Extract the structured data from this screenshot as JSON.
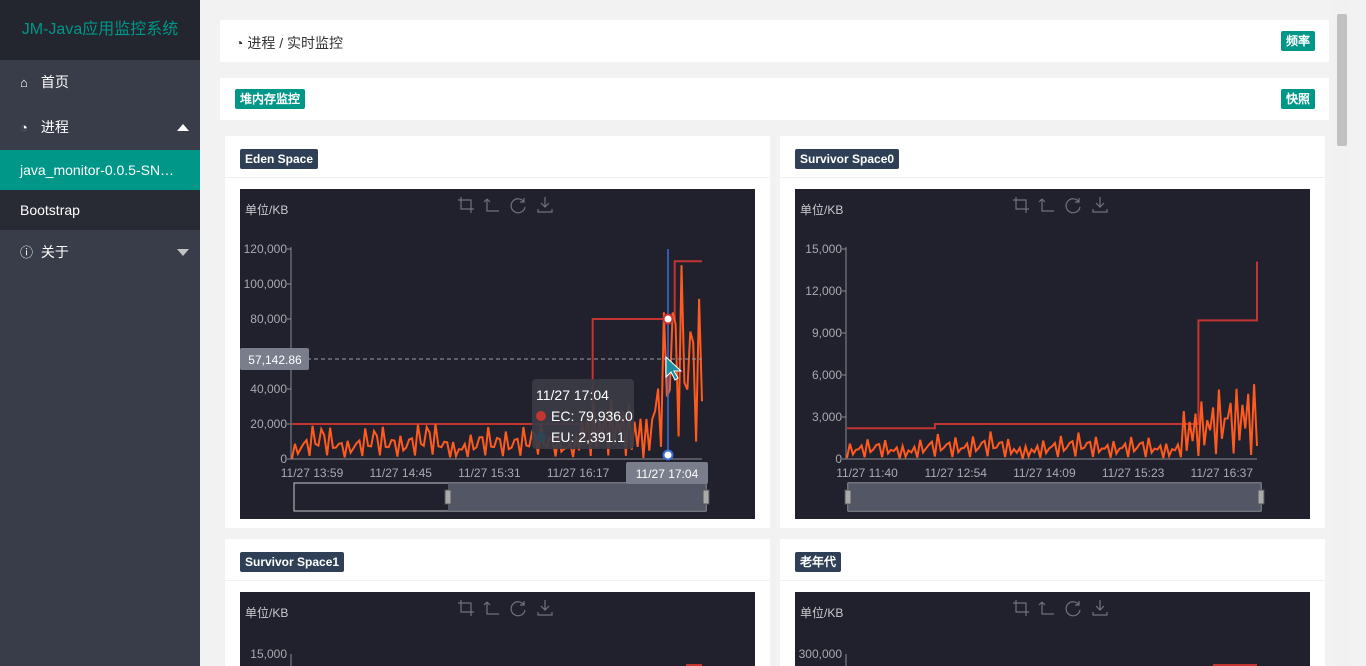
{
  "app": {
    "title": "JM-Java应用监控系统"
  },
  "sidebar": {
    "home": "首页",
    "process": "进程",
    "process_items": [
      "java_monitor-0.0.5-SN…",
      "Bootstrap"
    ],
    "about": "关于"
  },
  "breadcrumb": {
    "text": "进程 / 实时监控",
    "right_badge": "频率"
  },
  "section": {
    "title": "堆内存监控",
    "right_badge": "快照"
  },
  "colors": {
    "accent": "#009688",
    "sidebar": "#393d49",
    "chart_bg": "#21202d",
    "capacity_line": "#c23531",
    "used_line": "#ff5b1f"
  },
  "toolbox_icons": [
    "zoom-icon",
    "zoom-reset-icon",
    "restore-icon",
    "save-image-icon"
  ],
  "chart_unit": "单位/KB",
  "cards": [
    {
      "title": "Eden Space"
    },
    {
      "title": "Survivor Space0"
    },
    {
      "title": "Survivor Space1"
    },
    {
      "title": "老年代"
    }
  ],
  "chart_data": [
    {
      "type": "line",
      "title": "Eden Space",
      "ylabel": "单位/KB",
      "ylim": [
        0,
        120000
      ],
      "yticks": [
        "120,000",
        "100,000",
        "80,000",
        "60,000",
        "40,000",
        "20,000",
        "0"
      ],
      "xticks": [
        "11/27 13:59",
        "11/27 14:45",
        "11/27 15:31",
        "11/27 16:17",
        "11/27 17:04"
      ],
      "series": [
        {
          "name": "EC",
          "values": [
            20000,
            20000,
            20000,
            20000,
            20000,
            20000,
            20000,
            20000,
            20000,
            20000,
            20000,
            80000,
            80000,
            80000,
            113000,
            113000
          ]
        },
        {
          "name": "EU",
          "values": [
            2000,
            18000,
            5000,
            16000,
            8000,
            19000,
            3000,
            14000,
            10000,
            17000,
            6000,
            12000,
            15000,
            2391,
            90000,
            60000
          ]
        }
      ],
      "axis_pointer": {
        "y_label": "57,142.86",
        "x_label": "11/27 17:04"
      },
      "tooltip": {
        "time": "11/27 17:04",
        "ec": "EC: 79,936.0",
        "eu": "EU: 2,391.1"
      }
    },
    {
      "type": "line",
      "title": "Survivor Space0",
      "ylabel": "单位/KB",
      "ylim": [
        0,
        15000
      ],
      "yticks": [
        "15,000",
        "12,000",
        "9,000",
        "6,000",
        "3,000",
        "0"
      ],
      "xticks": [
        "11/27 11:40",
        "11/27 12:54",
        "11/27 14:09",
        "11/27 15:23",
        "11/27 16:37"
      ],
      "series": [
        {
          "name": "EC",
          "values": [
            2200,
            2200,
            2200,
            2500,
            2500,
            2500,
            2500,
            2500,
            2500,
            2500,
            2500,
            2500,
            9900,
            9900,
            14100
          ]
        },
        {
          "name": "EU",
          "values": [
            500,
            1000,
            300,
            1200,
            800,
            1400,
            200,
            900,
            1300,
            600,
            1100,
            400,
            1500,
            2900,
            1700
          ]
        }
      ]
    },
    {
      "type": "line",
      "title": "Survivor Space1",
      "ylabel": "单位/KB",
      "yticks": [
        "15,000"
      ]
    },
    {
      "type": "line",
      "title": "老年代",
      "ylabel": "单位/KB",
      "yticks": [
        "300,000"
      ]
    }
  ]
}
